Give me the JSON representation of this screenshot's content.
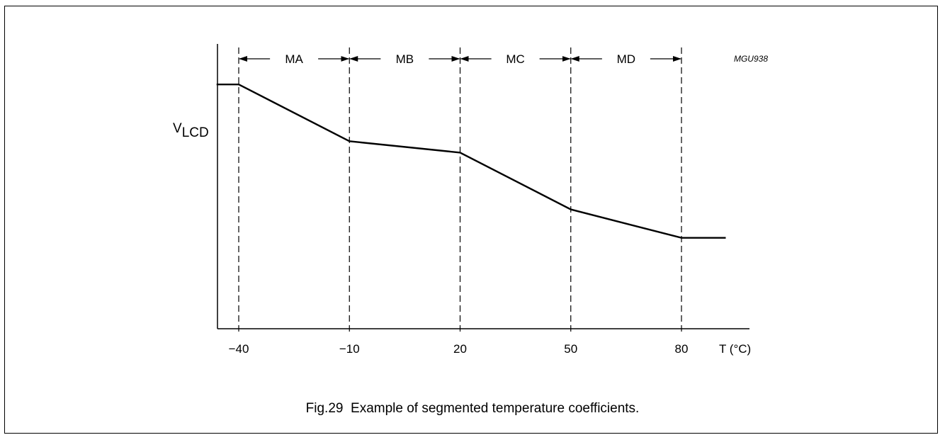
{
  "figure": {
    "caption": "Fig.29  Example of segmented temperature coefficients.",
    "code": "MGU938"
  },
  "chart_data": {
    "type": "line",
    "title": "",
    "xlabel": "T (°C)",
    "ylabel_main": "V",
    "ylabel_sub": "LCD",
    "xlim": [
      -60,
      110
    ],
    "ylim": [
      0,
      100
    ],
    "x_ticks": [
      "−40",
      "−10",
      "20",
      "50",
      "80"
    ],
    "x_tick_values": [
      -40,
      -10,
      20,
      50,
      80
    ],
    "series": [
      {
        "x": [
          -46,
          -40,
          -10,
          20,
          50,
          80,
          92
        ],
        "y": [
          85,
          85,
          65,
          61,
          41,
          31,
          31
        ]
      }
    ],
    "boundaries": [
      -40,
      -10,
      20,
      50,
      80
    ],
    "segments": [
      {
        "label": "MA",
        "from": -40,
        "to": -10
      },
      {
        "label": "MB",
        "from": -10,
        "to": 20
      },
      {
        "label": "MC",
        "from": 20,
        "to": 50
      },
      {
        "label": "MD",
        "from": 50,
        "to": 80
      }
    ],
    "grid": false
  }
}
